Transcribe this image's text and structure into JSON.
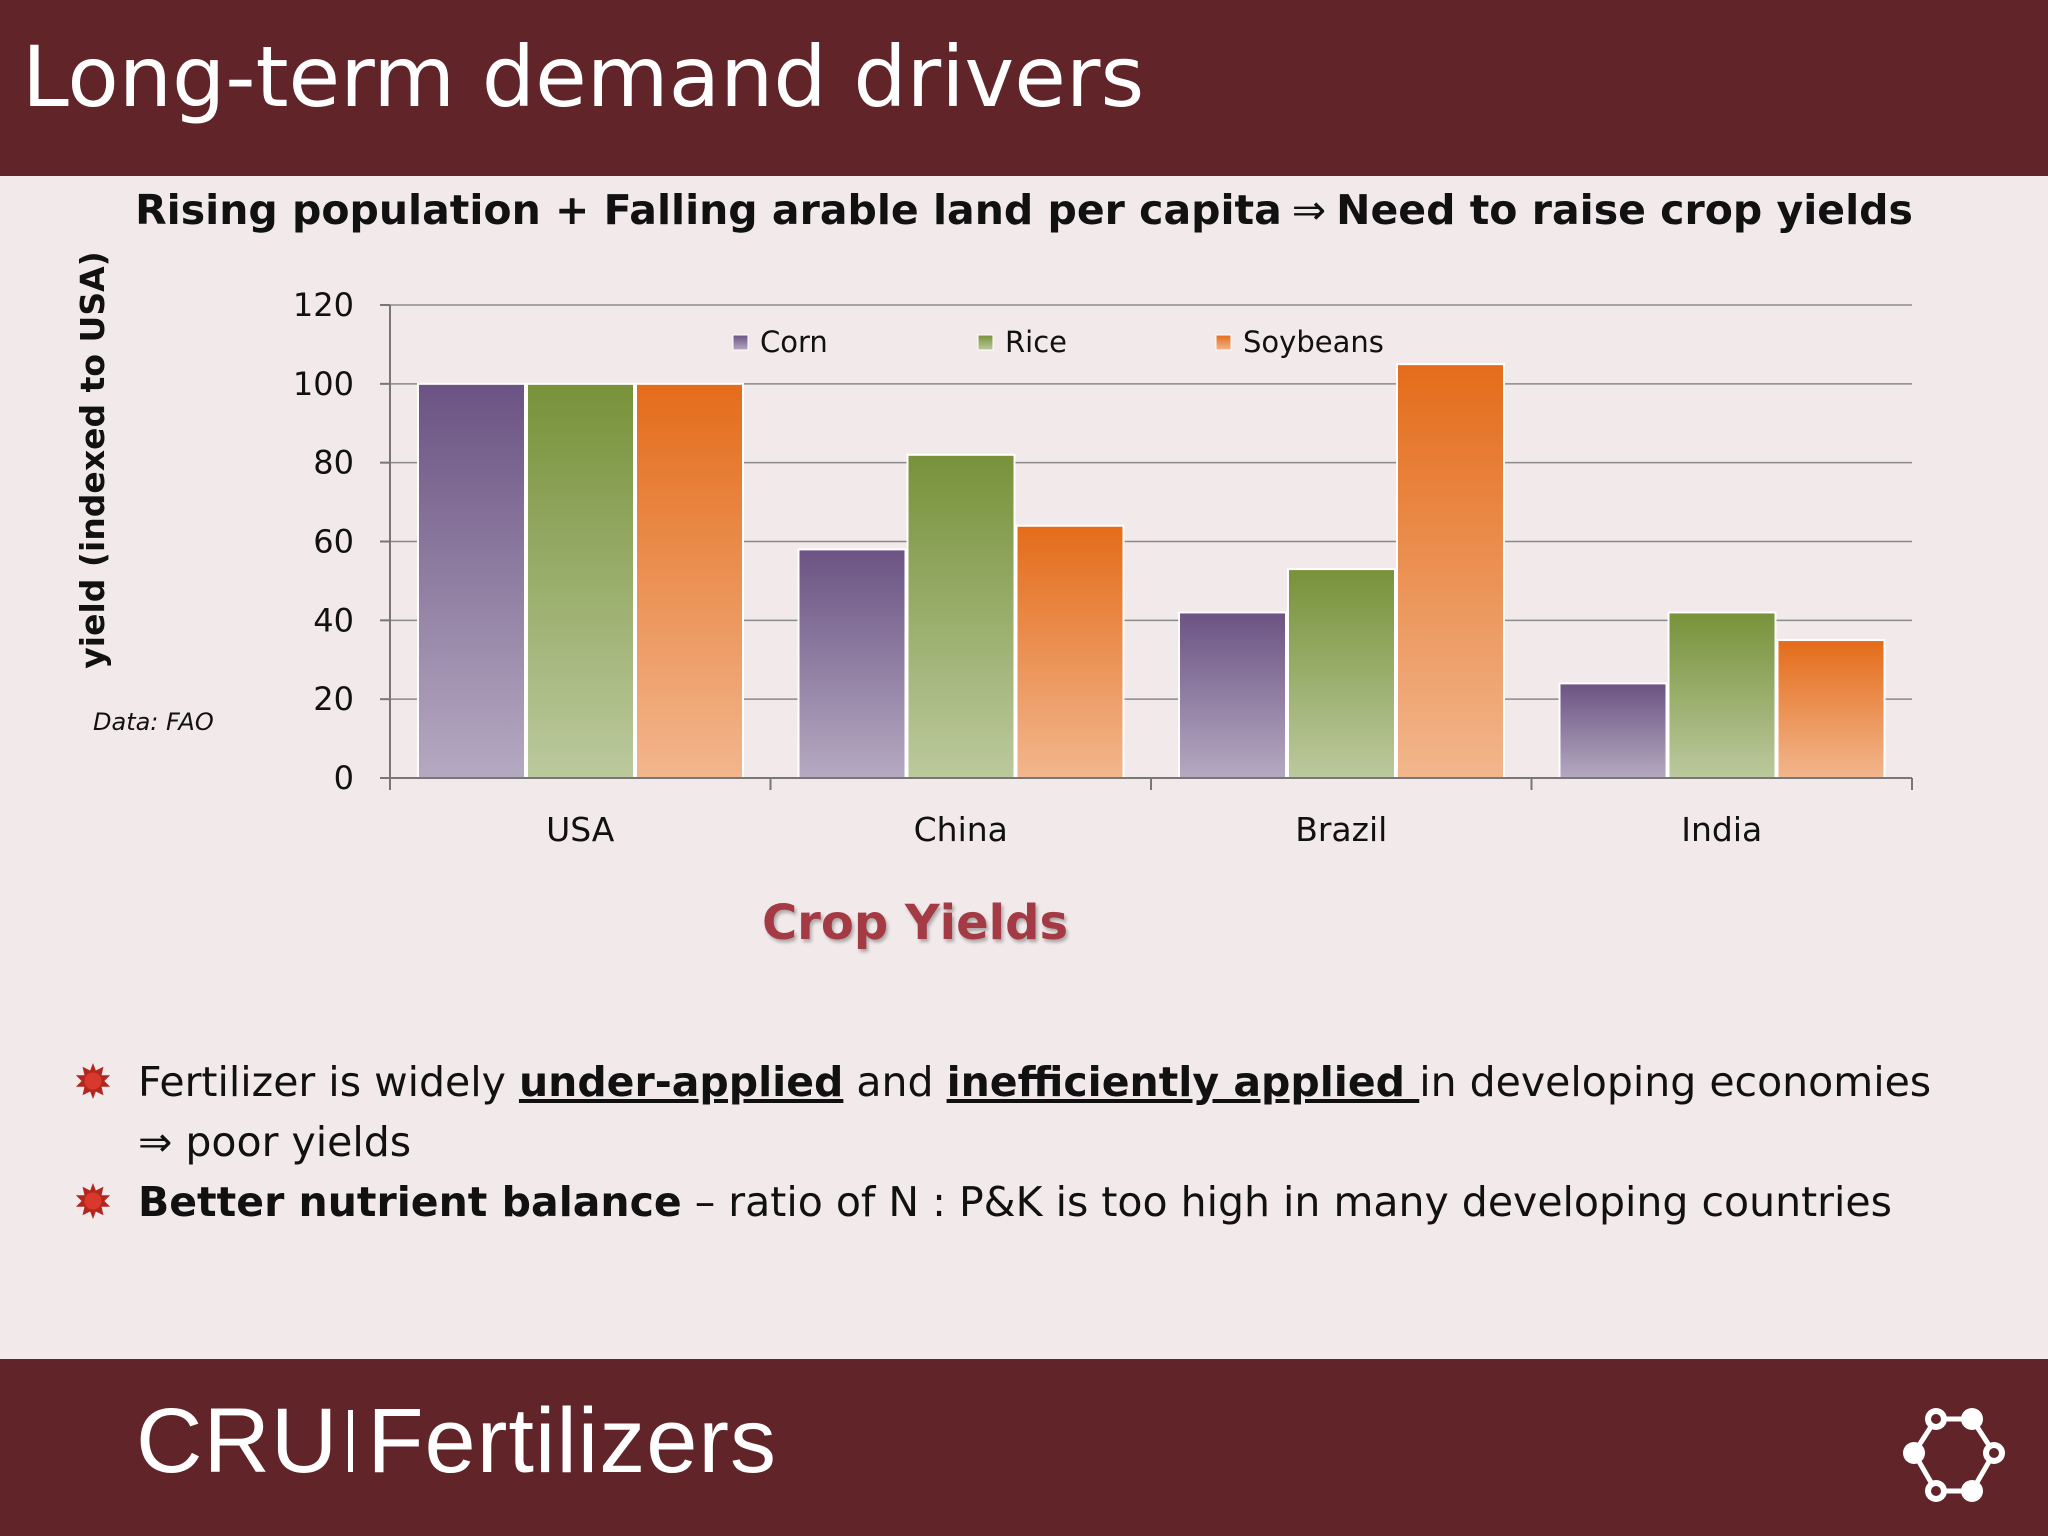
{
  "header": {
    "title": "Long-term demand drivers"
  },
  "subtitle": {
    "left": "Rising population + Falling arable land per capita",
    "arrow": "⇒",
    "right": "Need to raise crop yields"
  },
  "chart_data": {
    "type": "bar",
    "title": "Crop Yields",
    "ylabel": "yield (indexed to USA)",
    "xlabel": "",
    "categories": [
      "USA",
      "China",
      "Brazil",
      "India"
    ],
    "series": [
      {
        "name": "Corn",
        "values": [
          100,
          58,
          42,
          24
        ],
        "color": "#6b5383"
      },
      {
        "name": "Rice",
        "values": [
          100,
          82,
          53,
          42
        ],
        "color": "#77923a"
      },
      {
        "name": "Soybeans",
        "values": [
          100,
          64,
          105,
          35
        ],
        "color": "#e46c1a"
      }
    ],
    "ylim": [
      0,
      120
    ],
    "yticks": [
      0,
      20,
      40,
      60,
      80,
      100,
      120
    ],
    "grid": true,
    "legend": "top"
  },
  "source_note": "Data: FAO",
  "bullets": [
    {
      "p1": "Fertilizer is widely ",
      "u1": "under-applied",
      "p2": " and ",
      "u2": "inefficiently applied ",
      "p3": "in developing economies  ⇒ poor yields"
    },
    {
      "bold": "Better nutrient balance",
      "rest": " – ratio of N : P&K is too high in many developing countries"
    }
  ],
  "footer": {
    "brand_left": "CRU",
    "brand_right": "Fertilizers"
  },
  "icons": {
    "bullet": "starburst-icon",
    "logo": "ring-nodes-icon"
  }
}
